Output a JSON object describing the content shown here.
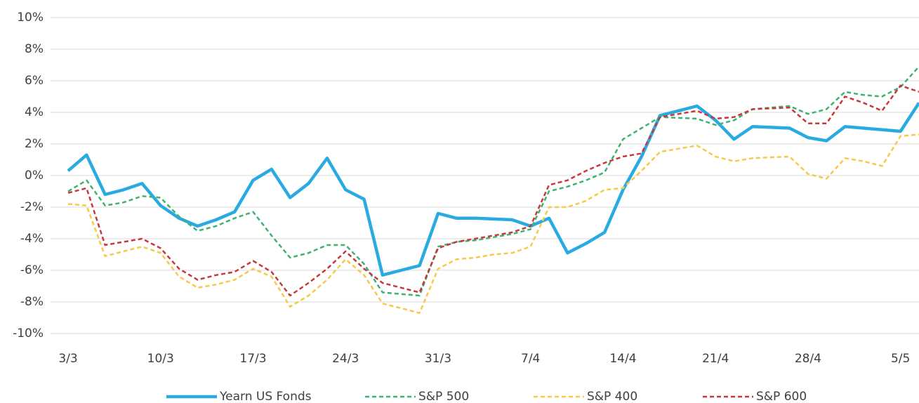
{
  "chart_data": {
    "type": "line",
    "categories": [
      "3/3",
      null,
      null,
      null,
      null,
      "10/3",
      null,
      null,
      null,
      null,
      "17/3",
      null,
      null,
      null,
      null,
      "24/3",
      null,
      null,
      null,
      null,
      "31/3",
      null,
      null,
      null,
      null,
      "7/4",
      null,
      null,
      null,
      null,
      "14/4",
      null,
      null,
      null,
      null,
      "21/4",
      null,
      null,
      null,
      null,
      "28/4",
      null,
      null,
      null,
      null,
      "5/5",
      null
    ],
    "series": [
      {
        "name": "Yearn US Fonds",
        "color": "#29abe2",
        "dash": false,
        "values": [
          0.3,
          1.3,
          -1.2,
          -0.9,
          -0.5,
          -1.9,
          -2.7,
          -3.2,
          -2.8,
          -2.3,
          -0.3,
          0.4,
          -1.4,
          -0.5,
          1.1,
          -0.9,
          -1.5,
          -6.3,
          -6.0,
          -5.7,
          -2.4,
          -2.7,
          -2.7,
          -2.75,
          -2.8,
          -3.2,
          -2.7,
          -4.9,
          -4.3,
          -3.6,
          -0.9,
          1.2,
          3.8,
          4.1,
          4.4,
          3.5,
          2.3,
          3.1,
          3.05,
          3.0,
          2.4,
          2.2,
          3.1,
          3.0,
          2.9,
          2.8,
          4.6
        ]
      },
      {
        "name": "S&P 500",
        "color": "#3cb371",
        "dash": true,
        "values": [
          -1.0,
          -0.3,
          -1.9,
          -1.7,
          -1.3,
          -1.4,
          -2.6,
          -3.5,
          -3.2,
          -2.7,
          -2.3,
          -3.8,
          -5.2,
          -4.9,
          -4.4,
          -4.4,
          -5.6,
          -7.4,
          -7.5,
          -7.6,
          -4.5,
          -4.2,
          -4.1,
          -3.9,
          -3.7,
          -3.4,
          -1.0,
          -0.7,
          -0.3,
          0.2,
          2.3,
          3.0,
          3.7,
          3.65,
          3.6,
          3.2,
          3.5,
          4.2,
          4.3,
          4.4,
          3.9,
          4.2,
          5.3,
          5.1,
          5.0,
          5.6,
          6.9
        ]
      },
      {
        "name": "S&P 400",
        "color": "#f7c948",
        "dash": true,
        "values": [
          -1.8,
          -1.9,
          -5.1,
          -4.8,
          -4.5,
          -4.9,
          -6.4,
          -7.1,
          -6.9,
          -6.6,
          -5.9,
          -6.4,
          -8.3,
          -7.6,
          -6.6,
          -5.3,
          -6.3,
          -8.1,
          -8.4,
          -8.7,
          -5.9,
          -5.3,
          -5.2,
          -5.0,
          -4.9,
          -4.5,
          -2.0,
          -2.0,
          -1.6,
          -0.9,
          -0.8,
          0.3,
          1.5,
          1.7,
          1.9,
          1.2,
          0.9,
          1.1,
          1.15,
          1.2,
          0.1,
          -0.2,
          1.1,
          0.9,
          0.6,
          2.5,
          2.6
        ]
      },
      {
        "name": "S&P 600",
        "color": "#c8373a",
        "dash": true,
        "values": [
          -1.1,
          -0.8,
          -4.4,
          -4.2,
          -4.0,
          -4.6,
          -5.9,
          -6.6,
          -6.3,
          -6.1,
          -5.4,
          -6.1,
          -7.6,
          -6.8,
          -5.9,
          -4.8,
          -5.9,
          -6.8,
          -7.1,
          -7.4,
          -4.6,
          -4.2,
          -4.0,
          -3.8,
          -3.6,
          -3.2,
          -0.6,
          -0.3,
          0.3,
          0.8,
          1.2,
          1.4,
          3.7,
          3.9,
          4.1,
          3.6,
          3.7,
          4.2,
          4.25,
          4.3,
          3.3,
          3.3,
          5.0,
          4.6,
          4.1,
          5.7,
          5.3
        ]
      }
    ],
    "ylim": [
      -10,
      10
    ],
    "yticks": [
      {
        "value": -10,
        "label": "-10%"
      },
      {
        "value": -8,
        "label": "-8%"
      },
      {
        "value": -6,
        "label": "-6%"
      },
      {
        "value": -4,
        "label": "-4%"
      },
      {
        "value": -2,
        "label": "-2%"
      },
      {
        "value": 0,
        "label": "0%"
      },
      {
        "value": 2,
        "label": "2%"
      },
      {
        "value": 4,
        "label": "4%"
      },
      {
        "value": 6,
        "label": "6%"
      },
      {
        "value": 8,
        "label": "8%"
      },
      {
        "value": 10,
        "label": "10%"
      }
    ],
    "grid": true,
    "legend": "bottom"
  }
}
